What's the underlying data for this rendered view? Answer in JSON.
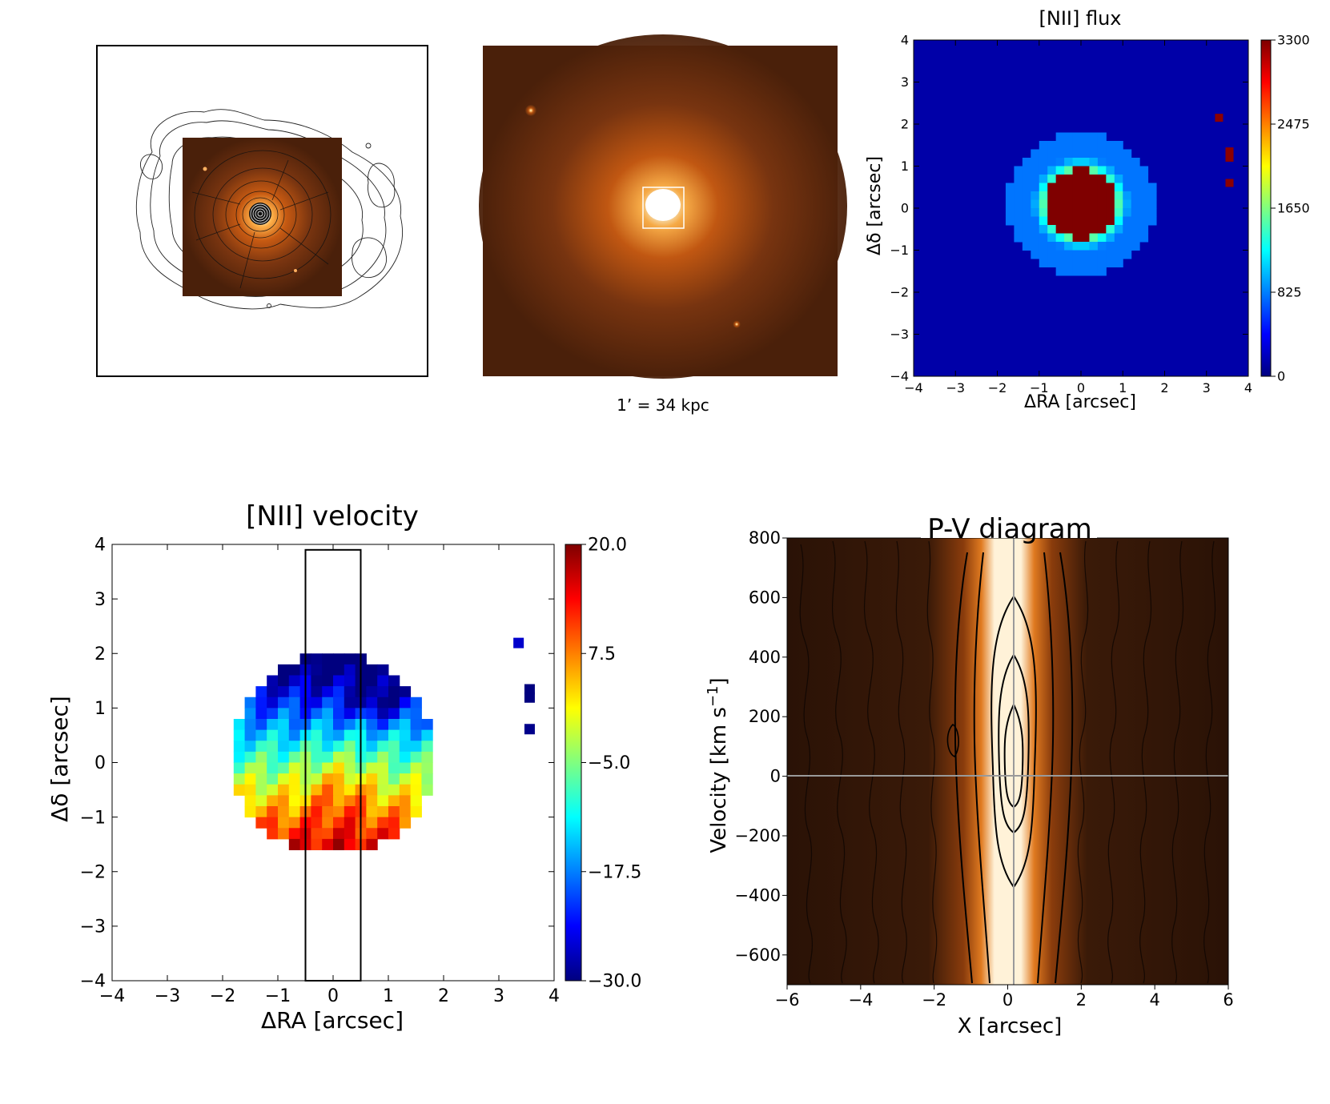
{
  "figure": {
    "panels": [
      {
        "id": "xray-contours",
        "kind": "image",
        "description_hidden": true
      },
      {
        "id": "optical-image",
        "kind": "image",
        "caption": "1’ = 34 kpc"
      }
    ],
    "colors": {
      "jet_stops": [
        "#00007f",
        "#0000ff",
        "#00ffff",
        "#ffff00",
        "#ff0000",
        "#7f0000"
      ],
      "orange_bg": "#5a2a0c",
      "pv_bg": "#2a1206"
    }
  },
  "chart_data": [
    {
      "type": "heatmap",
      "title": "[NII] flux",
      "xlabel": "ΔRA [arcsec]",
      "ylabel": "Δδ [arcsec]",
      "xlim": [
        -4,
        4
      ],
      "ylim": [
        -4,
        4
      ],
      "xticks": [
        "−4",
        "−3",
        "−2",
        "−1",
        "0",
        "1",
        "2",
        "3",
        "4"
      ],
      "yticks": [
        "4",
        "3",
        "2",
        "1",
        "0",
        "−1",
        "−2",
        "−3",
        "−4"
      ],
      "colorbar": {
        "min": 0,
        "max": 3300,
        "ticks": [
          "3300",
          "2475",
          "1650",
          "825",
          "0"
        ]
      },
      "source": {
        "center": [
          0,
          0
        ],
        "peak": 3300,
        "radius_arcsec": 1.8
      }
    },
    {
      "type": "heatmap",
      "title": "[NII] velocity",
      "xlabel": "ΔRA [arcsec]",
      "ylabel": "Δδ [arcsec]",
      "xlim": [
        -4,
        4
      ],
      "ylim": [
        -4,
        4
      ],
      "xticks": [
        "−4",
        "−3",
        "−2",
        "−1",
        "0",
        "1",
        "2",
        "3",
        "4"
      ],
      "yticks": [
        "4",
        "3",
        "2",
        "1",
        "0",
        "−1",
        "−2",
        "−3",
        "−4"
      ],
      "colorbar": {
        "min": -30,
        "max": 20,
        "ticks": [
          "20.0",
          "7.5",
          "−5.0",
          "−17.5",
          "−30.0"
        ]
      },
      "slit": {
        "x": [
          -0.5,
          0.5
        ],
        "y": [
          -4,
          3.9
        ]
      }
    },
    {
      "type": "heatmap",
      "title": "P-V diagram",
      "xlabel": "X [arcsec]",
      "ylabel": "Velocity [km s",
      "ylabel_sup": "−1",
      "ylabel_end": "]",
      "xlim": [
        -6,
        6
      ],
      "ylim": [
        -700,
        800
      ],
      "xticks": [
        "−6",
        "−4",
        "−2",
        "0",
        "2",
        "4",
        "6"
      ],
      "yticks": [
        "800",
        "600",
        "400",
        "200",
        "0",
        "−200",
        "−400",
        "−600"
      ]
    }
  ]
}
